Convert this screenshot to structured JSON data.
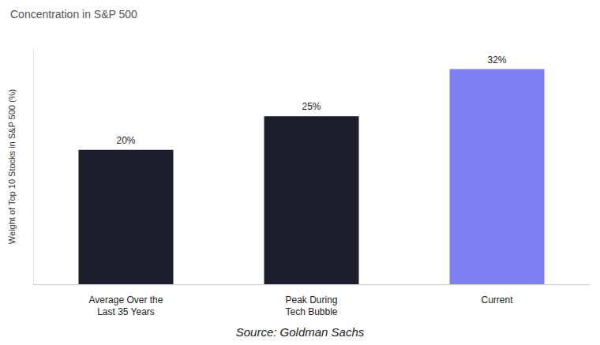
{
  "chart_data": {
    "type": "bar",
    "title": "Concentration in S&P 500",
    "y_label": "Weight of Top 10 Stocks in S&P 500 (%)",
    "categories": [
      "Average Over the\nLast 35 Years",
      "Peak During\nTech Bubble",
      "Current"
    ],
    "values": [
      20,
      25,
      32
    ],
    "value_labels": [
      "20%",
      "25%",
      "32%"
    ],
    "colors": [
      "#1b1e2b",
      "#1b1e2b",
      "#7f7ff4"
    ],
    "ylim": [
      0,
      35
    ],
    "data_labels": true,
    "tick_labels": "x",
    "grid": false,
    "source": "Source: Goldman Sachs"
  }
}
